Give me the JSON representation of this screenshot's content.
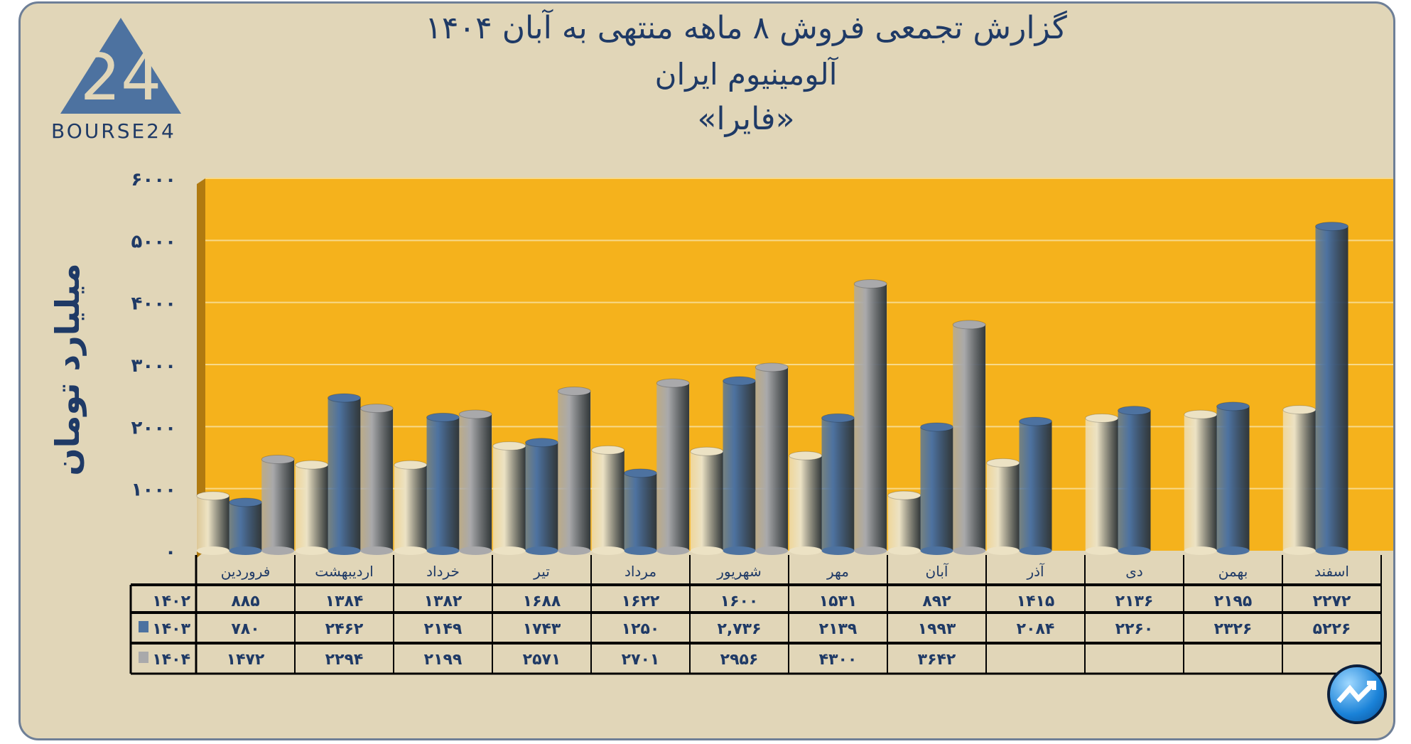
{
  "title": {
    "line1": "گزارش تجمعی فروش ۸ ماهه منتهی به آبان ۱۴۰۴",
    "line2": "آلومینیوم ایران",
    "line3": "«فایرا»"
  },
  "logo": {
    "text": "BOURSE24",
    "mark": "24"
  },
  "colors": {
    "plot_bg": "#f5b21c",
    "s1402": "#ece2c4",
    "s1403": "#4d72a0",
    "s1404": "#a9a9ab",
    "text": "#1f3a66"
  },
  "chart_data": {
    "type": "bar",
    "ylabel": "میلیارد تومان",
    "ylim": [
      0,
      6000
    ],
    "yticks": [
      0,
      1000,
      2000,
      3000,
      4000,
      5000,
      6000
    ],
    "ytick_labels": [
      "۰",
      "۱۰۰۰",
      "۲۰۰۰",
      "۳۰۰۰",
      "۴۰۰۰",
      "۵۰۰۰",
      "۶۰۰۰"
    ],
    "grid": true,
    "legend": "table-left",
    "categories": [
      "فروردین",
      "اردیبهشت",
      "خرداد",
      "تیر",
      "مرداد",
      "شهریور",
      "مهر",
      "آبان",
      "آذر",
      "دی",
      "بهمن",
      "اسفند"
    ],
    "series": [
      {
        "name": "۱۴۰۲",
        "color": "#ece2c4",
        "values": [
          885,
          1384,
          1382,
          1688,
          1622,
          1600,
          1531,
          892,
          1415,
          2136,
          2195,
          2272
        ],
        "labels": [
          "۸۸۵",
          "۱۳۸۴",
          "۱۳۸۲",
          "۱۶۸۸",
          "۱۶۲۲",
          "۱۶۰۰",
          "۱۵۳۱",
          "۸۹۲",
          "۱۴۱۵",
          "۲۱۳۶",
          "۲۱۹۵",
          "۲۲۷۲"
        ]
      },
      {
        "name": "۱۴۰۳",
        "color": "#4d72a0",
        "values": [
          780,
          2462,
          2149,
          1743,
          1250,
          2736,
          2139,
          1993,
          2084,
          2260,
          2326,
          5226
        ],
        "labels": [
          "۷۸۰",
          "۲۴۶۲",
          "۲۱۴۹",
          "۱۷۴۳",
          "۱۲۵۰",
          "۲,۷۳۶",
          "۲۱۳۹",
          "۱۹۹۳",
          "۲۰۸۴",
          "۲۲۶۰",
          "۲۳۲۶",
          "۵۲۲۶"
        ]
      },
      {
        "name": "۱۴۰۴",
        "color": "#a9a9ab",
        "values": [
          1472,
          2294,
          2199,
          2571,
          2701,
          2956,
          4300,
          3642,
          null,
          null,
          null,
          null
        ],
        "labels": [
          "۱۴۷۲",
          "۲۲۹۴",
          "۲۱۹۹",
          "۲۵۷۱",
          "۲۷۰۱",
          "۲۹۵۶",
          "۴۳۰۰",
          "۳۶۴۲",
          "",
          "",
          "",
          ""
        ]
      }
    ]
  }
}
